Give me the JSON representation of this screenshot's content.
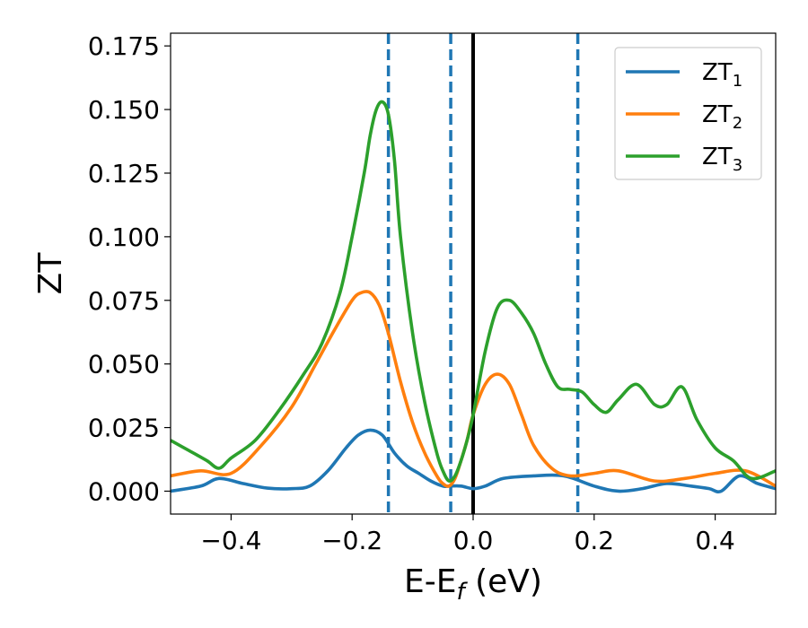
{
  "chart_data": {
    "type": "line",
    "xlabel": {
      "base": "E-E",
      "sub": "f",
      "tail": " (eV)"
    },
    "ylabel": "ZT",
    "xlim": [
      -0.5,
      0.5
    ],
    "ylim": [
      -0.009,
      0.18
    ],
    "xticks": [
      -0.4,
      -0.2,
      0.0,
      0.2,
      0.4
    ],
    "xtick_labels": [
      "−0.4",
      "−0.2",
      "0.0",
      "0.2",
      "0.4"
    ],
    "yticks": [
      0.0,
      0.025,
      0.05,
      0.075,
      0.1,
      0.125,
      0.15,
      0.175
    ],
    "ytick_labels": [
      "0.000",
      "0.025",
      "0.050",
      "0.075",
      "0.100",
      "0.125",
      "0.150",
      "0.175"
    ],
    "grid": false,
    "legend_position": "top-right",
    "vertical_lines": [
      {
        "x": -0.14,
        "style": "dashed",
        "color": "#1f77b4"
      },
      {
        "x": -0.037,
        "style": "dashed",
        "color": "#1f77b4"
      },
      {
        "x": 0.0,
        "style": "solid",
        "color": "#000000"
      },
      {
        "x": 0.173,
        "style": "dashed",
        "color": "#1f77b4"
      }
    ],
    "series": [
      {
        "name": "ZT",
        "sub": "1",
        "color": "#1f77b4",
        "x": [
          -0.5,
          -0.45,
          -0.42,
          -0.38,
          -0.34,
          -0.3,
          -0.27,
          -0.24,
          -0.21,
          -0.19,
          -0.17,
          -0.15,
          -0.13,
          -0.11,
          -0.09,
          -0.07,
          -0.05,
          -0.04,
          -0.02,
          0.0,
          0.02,
          0.05,
          0.1,
          0.15,
          0.2,
          0.24,
          0.28,
          0.32,
          0.36,
          0.39,
          0.41,
          0.44,
          0.47,
          0.5
        ],
        "y": [
          0.0,
          0.002,
          0.005,
          0.003,
          0.0012,
          0.001,
          0.002,
          0.008,
          0.017,
          0.022,
          0.024,
          0.022,
          0.015,
          0.01,
          0.007,
          0.004,
          0.002,
          0.002,
          0.002,
          0.001,
          0.002,
          0.005,
          0.006,
          0.006,
          0.002,
          0.0,
          0.001,
          0.003,
          0.002,
          0.001,
          0.0,
          0.006,
          0.003,
          0.001
        ]
      },
      {
        "name": "ZT",
        "sub": "2",
        "color": "#ff7f0e",
        "x": [
          -0.5,
          -0.45,
          -0.4,
          -0.35,
          -0.3,
          -0.26,
          -0.23,
          -0.2,
          -0.185,
          -0.17,
          -0.155,
          -0.14,
          -0.12,
          -0.1,
          -0.08,
          -0.06,
          -0.05,
          -0.04,
          -0.03,
          -0.02,
          -0.01,
          0.0,
          0.02,
          0.04,
          0.06,
          0.08,
          0.1,
          0.13,
          0.16,
          0.2,
          0.24,
          0.3,
          0.35,
          0.4,
          0.45,
          0.5
        ],
        "y": [
          0.006,
          0.008,
          0.007,
          0.018,
          0.033,
          0.05,
          0.063,
          0.075,
          0.078,
          0.078,
          0.073,
          0.062,
          0.043,
          0.027,
          0.015,
          0.006,
          0.003,
          0.002,
          0.005,
          0.012,
          0.02,
          0.03,
          0.042,
          0.046,
          0.042,
          0.03,
          0.018,
          0.009,
          0.006,
          0.007,
          0.008,
          0.004,
          0.005,
          0.007,
          0.008,
          0.002
        ]
      },
      {
        "name": "ZT",
        "sub": "3",
        "color": "#2ca02c",
        "x": [
          -0.5,
          -0.47,
          -0.44,
          -0.42,
          -0.4,
          -0.36,
          -0.32,
          -0.28,
          -0.25,
          -0.22,
          -0.2,
          -0.18,
          -0.17,
          -0.16,
          -0.15,
          -0.14,
          -0.13,
          -0.12,
          -0.1,
          -0.08,
          -0.06,
          -0.05,
          -0.04,
          -0.03,
          -0.02,
          -0.01,
          0.0,
          0.02,
          0.04,
          0.06,
          0.08,
          0.1,
          0.12,
          0.14,
          0.16,
          0.18,
          0.2,
          0.22,
          0.24,
          0.27,
          0.3,
          0.32,
          0.345,
          0.37,
          0.4,
          0.43,
          0.46,
          0.5
        ],
        "y": [
          0.02,
          0.016,
          0.012,
          0.009,
          0.013,
          0.02,
          0.032,
          0.046,
          0.058,
          0.078,
          0.1,
          0.125,
          0.14,
          0.15,
          0.153,
          0.148,
          0.13,
          0.1,
          0.062,
          0.035,
          0.015,
          0.008,
          0.004,
          0.006,
          0.012,
          0.02,
          0.03,
          0.055,
          0.072,
          0.075,
          0.07,
          0.062,
          0.05,
          0.041,
          0.04,
          0.039,
          0.034,
          0.031,
          0.036,
          0.042,
          0.034,
          0.034,
          0.041,
          0.028,
          0.017,
          0.012,
          0.005,
          0.008
        ]
      }
    ]
  }
}
